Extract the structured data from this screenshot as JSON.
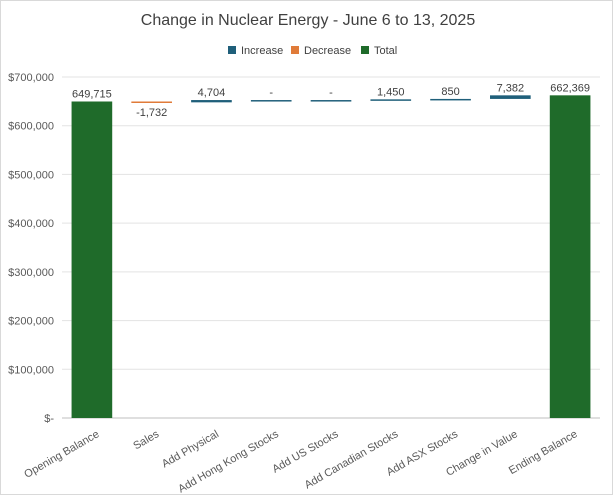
{
  "chart_data": {
    "type": "bar",
    "subtype": "waterfall",
    "title": "Change in Nuclear Energy - June 6 to 13, 2025",
    "xlabel": "",
    "ylabel": "",
    "ylim": [
      0,
      700000
    ],
    "yticks": [
      0,
      100000,
      200000,
      300000,
      400000,
      500000,
      600000,
      700000
    ],
    "ytick_labels": [
      "$-",
      "$100,000",
      "$200,000",
      "$300,000",
      "$400,000",
      "$500,000",
      "$600,000",
      "$700,000"
    ],
    "grid": true,
    "legend_position": "top",
    "legend": [
      {
        "name": "Increase",
        "color": "#1f5f7a"
      },
      {
        "name": "Decrease",
        "color": "#e07b39"
      },
      {
        "name": "Total",
        "color": "#1f6b2a"
      }
    ],
    "categories": [
      "Opening Balance",
      "Sales",
      "Add Physical",
      "Add Hong Kong Stocks",
      "Add US Stocks",
      "Add  Canadian Stocks",
      "Add ASX Stocks",
      "Change in Value",
      "Ending Balance"
    ],
    "values": [
      649715,
      -1732,
      4704,
      0,
      0,
      1450,
      850,
      7382,
      662369
    ],
    "kinds": [
      "total",
      "decrease",
      "increase",
      "increase",
      "increase",
      "increase",
      "increase",
      "increase",
      "total"
    ],
    "data_labels": [
      "649,715",
      "-1,732",
      "4,704",
      "-",
      "-",
      "1,450",
      "850",
      "7,382",
      "662,369"
    ]
  }
}
